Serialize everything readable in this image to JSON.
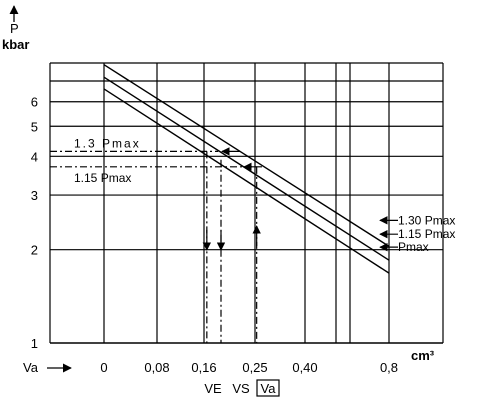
{
  "chart_data": {
    "type": "line",
    "title": "",
    "ylabel": "P",
    "yunit": "kbar",
    "xunit": "cm³",
    "x_axis_arrow_label": "Va",
    "yscale": "log",
    "ylim": [
      1,
      8
    ],
    "xlim": [
      -0.15,
      0.95
    ],
    "y_ticks": [
      {
        "value": 1,
        "label": "1"
      },
      {
        "value": 2,
        "label": "2"
      },
      {
        "value": 3,
        "label": "3"
      },
      {
        "value": 4,
        "label": "4"
      },
      {
        "value": 5,
        "label": "5"
      },
      {
        "value": 6,
        "label": "6"
      }
    ],
    "x_ticks": [
      {
        "value": 0,
        "label": "0"
      },
      {
        "value": 0.08,
        "label": "0,08"
      },
      {
        "value": 0.16,
        "label": "0,16"
      },
      {
        "value": 0.25,
        "label": "0,25"
      },
      {
        "value": 0.4,
        "label": "0,40"
      },
      {
        "value": 0.8,
        "label": "0,8"
      }
    ],
    "grid": true,
    "series": [
      {
        "name": "1.30 Pmax",
        "x": [
          0,
          0.8
        ],
        "y": [
          7.9,
          2.05
        ]
      },
      {
        "name": "1.15 Pmax",
        "x": [
          0,
          0.8
        ],
        "y": [
          7.2,
          1.85
        ]
      },
      {
        "name": "Pmax",
        "x": [
          0,
          0.8
        ],
        "y": [
          6.6,
          1.68
        ]
      }
    ],
    "reference_lines": [
      {
        "label": "1.3  Pmax",
        "y": 4.15,
        "x_end": 0.185
      },
      {
        "label": "1.15 Pmax",
        "y": 3.7,
        "x_end": 0.255
      }
    ],
    "markers": [
      {
        "label": "VE",
        "x": 0.165
      },
      {
        "label": "VS",
        "x": 0.19
      },
      {
        "label": "Va",
        "x": 0.255,
        "boxed": true
      }
    ]
  }
}
